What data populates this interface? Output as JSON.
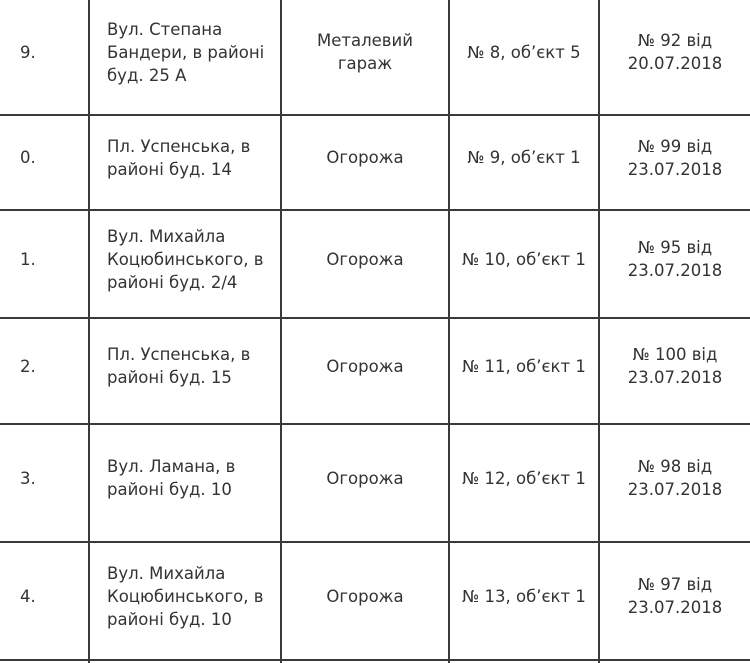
{
  "rows": [
    {
      "num": "9.",
      "address": "Вул. Степана Бандери, в районі буд. 25 А",
      "type": "Металевий гараж",
      "object": "№ 8, об’єкт 5",
      "decision": "№ 92 від 20.07.2018"
    },
    {
      "num": "0.",
      "address": "Пл. Успенська, в районі буд. 14",
      "type": "Огорожа",
      "object": "№ 9, об’єкт 1",
      "decision": "№ 99 від 23.07.2018"
    },
    {
      "num": "1.",
      "address": "Вул. Михайла Коцюбинського, в районі буд. 2/4",
      "type": "Огорожа",
      "object": "№ 10, об’єкт 1",
      "decision": "№ 95 від 23.07.2018"
    },
    {
      "num": "2.",
      "address": "Пл. Успенська, в районі буд. 15",
      "type": "Огорожа",
      "object": "№ 11, об’єкт 1",
      "decision": "№ 100 від 23.07.2018"
    },
    {
      "num": "3.",
      "address": "Вул. Ламана, в районі буд. 10",
      "type": "Огорожа",
      "object": "№ 12, об’єкт 1",
      "decision": "№ 98 від 23.07.2018"
    },
    {
      "num": "4.",
      "address": "Вул. Михайла Коцюбинського, в районі буд. 10",
      "type": "Огорожа",
      "object": "№ 13, об’єкт 1",
      "decision": "№ 97 від 23.07.2018"
    }
  ]
}
